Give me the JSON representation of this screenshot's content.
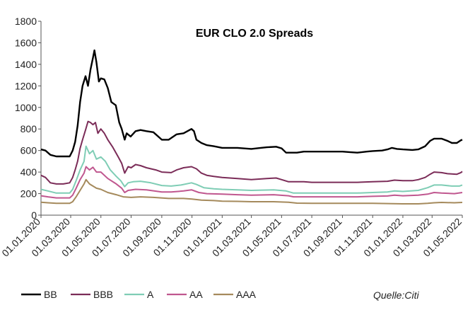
{
  "chart_data": {
    "type": "line",
    "title": "EUR CLO 2.0 Spreads",
    "source": "Quelle:Citi",
    "ylim": [
      0,
      1800
    ],
    "yticks": [
      0,
      200,
      400,
      600,
      800,
      1000,
      1200,
      1400,
      1600,
      1800
    ],
    "xlim": [
      "2020-01-01",
      "2022-05-01"
    ],
    "xticks": [
      "01.01.2020",
      "01.03.2020",
      "01.05.2020",
      "01.07.2020",
      "01.09.2020",
      "01.11.2020",
      "01.01.2021",
      "01.03.2021",
      "01.05.2021",
      "01.07.2021",
      "01.09.2021",
      "01.11.2021",
      "01.01.2022",
      "01.03.2022",
      "01.05.2022"
    ],
    "grid": false,
    "legend": "bottom",
    "series": [
      {
        "name": "BB",
        "color": "#000000",
        "points": [
          [
            "2020-01-01",
            610
          ],
          [
            "2020-01-10",
            600
          ],
          [
            "2020-01-20",
            560
          ],
          [
            "2020-02-01",
            545
          ],
          [
            "2020-02-10",
            545
          ],
          [
            "2020-02-20",
            545
          ],
          [
            "2020-02-28",
            545
          ],
          [
            "2020-03-05",
            600
          ],
          [
            "2020-03-10",
            680
          ],
          [
            "2020-03-15",
            830
          ],
          [
            "2020-03-20",
            1050
          ],
          [
            "2020-03-25",
            1200
          ],
          [
            "2020-03-31",
            1290
          ],
          [
            "2020-04-05",
            1200
          ],
          [
            "2020-04-10",
            1350
          ],
          [
            "2020-04-15",
            1460
          ],
          [
            "2020-04-18",
            1530
          ],
          [
            "2020-04-22",
            1420
          ],
          [
            "2020-04-27",
            1240
          ],
          [
            "2020-05-01",
            1270
          ],
          [
            "2020-05-08",
            1260
          ],
          [
            "2020-05-15",
            1180
          ],
          [
            "2020-05-22",
            1050
          ],
          [
            "2020-05-31",
            1020
          ],
          [
            "2020-06-07",
            860
          ],
          [
            "2020-06-12",
            800
          ],
          [
            "2020-06-18",
            700
          ],
          [
            "2020-06-22",
            760
          ],
          [
            "2020-06-30",
            730
          ],
          [
            "2020-07-10",
            780
          ],
          [
            "2020-07-20",
            790
          ],
          [
            "2020-08-01",
            780
          ],
          [
            "2020-08-15",
            770
          ],
          [
            "2020-09-01",
            700
          ],
          [
            "2020-09-15",
            700
          ],
          [
            "2020-10-01",
            750
          ],
          [
            "2020-10-15",
            760
          ],
          [
            "2020-10-31",
            800
          ],
          [
            "2020-11-05",
            780
          ],
          [
            "2020-11-10",
            700
          ],
          [
            "2020-11-20",
            670
          ],
          [
            "2020-12-01",
            650
          ],
          [
            "2020-12-15",
            640
          ],
          [
            "2021-01-01",
            625
          ],
          [
            "2021-02-01",
            625
          ],
          [
            "2021-03-01",
            615
          ],
          [
            "2021-03-20",
            625
          ],
          [
            "2021-04-01",
            630
          ],
          [
            "2021-04-20",
            635
          ],
          [
            "2021-05-01",
            620
          ],
          [
            "2021-05-10",
            580
          ],
          [
            "2021-06-01",
            580
          ],
          [
            "2021-06-15",
            590
          ],
          [
            "2021-07-01",
            590
          ],
          [
            "2021-08-01",
            590
          ],
          [
            "2021-09-01",
            590
          ],
          [
            "2021-09-15",
            585
          ],
          [
            "2021-10-01",
            580
          ],
          [
            "2021-10-20",
            590
          ],
          [
            "2021-11-01",
            595
          ],
          [
            "2021-11-20",
            600
          ],
          [
            "2021-12-01",
            610
          ],
          [
            "2021-12-10",
            625
          ],
          [
            "2021-12-20",
            615
          ],
          [
            "2022-01-01",
            610
          ],
          [
            "2022-01-20",
            605
          ],
          [
            "2022-02-01",
            610
          ],
          [
            "2022-02-15",
            640
          ],
          [
            "2022-02-25",
            690
          ],
          [
            "2022-03-05",
            710
          ],
          [
            "2022-03-20",
            710
          ],
          [
            "2022-04-01",
            690
          ],
          [
            "2022-04-10",
            670
          ],
          [
            "2022-04-20",
            670
          ],
          [
            "2022-04-28",
            695
          ],
          [
            "2022-05-01",
            700
          ]
        ]
      },
      {
        "name": "BBB",
        "color": "#7b2c58",
        "points": [
          [
            "2020-01-01",
            370
          ],
          [
            "2020-01-10",
            350
          ],
          [
            "2020-01-20",
            300
          ],
          [
            "2020-02-01",
            290
          ],
          [
            "2020-02-15",
            290
          ],
          [
            "2020-02-28",
            300
          ],
          [
            "2020-03-05",
            350
          ],
          [
            "2020-03-10",
            420
          ],
          [
            "2020-03-15",
            500
          ],
          [
            "2020-03-20",
            620
          ],
          [
            "2020-03-25",
            700
          ],
          [
            "2020-03-31",
            790
          ],
          [
            "2020-04-05",
            870
          ],
          [
            "2020-04-10",
            860
          ],
          [
            "2020-04-15",
            840
          ],
          [
            "2020-04-20",
            860
          ],
          [
            "2020-04-25",
            760
          ],
          [
            "2020-05-01",
            800
          ],
          [
            "2020-05-08",
            760
          ],
          [
            "2020-05-15",
            700
          ],
          [
            "2020-05-25",
            630
          ],
          [
            "2020-06-05",
            540
          ],
          [
            "2020-06-12",
            480
          ],
          [
            "2020-06-18",
            390
          ],
          [
            "2020-06-25",
            450
          ],
          [
            "2020-07-01",
            440
          ],
          [
            "2020-07-10",
            470
          ],
          [
            "2020-07-20",
            460
          ],
          [
            "2020-08-01",
            440
          ],
          [
            "2020-08-20",
            420
          ],
          [
            "2020-09-01",
            400
          ],
          [
            "2020-09-20",
            395
          ],
          [
            "2020-10-01",
            420
          ],
          [
            "2020-10-15",
            440
          ],
          [
            "2020-10-31",
            450
          ],
          [
            "2020-11-10",
            430
          ],
          [
            "2020-11-20",
            390
          ],
          [
            "2020-12-01",
            370
          ],
          [
            "2020-12-15",
            360
          ],
          [
            "2021-01-01",
            350
          ],
          [
            "2021-02-01",
            340
          ],
          [
            "2021-03-01",
            330
          ],
          [
            "2021-04-01",
            340
          ],
          [
            "2021-04-20",
            345
          ],
          [
            "2021-05-01",
            330
          ],
          [
            "2021-05-15",
            310
          ],
          [
            "2021-06-15",
            310
          ],
          [
            "2021-07-01",
            305
          ],
          [
            "2021-08-01",
            305
          ],
          [
            "2021-09-01",
            305
          ],
          [
            "2021-10-01",
            305
          ],
          [
            "2021-11-01",
            310
          ],
          [
            "2021-12-01",
            315
          ],
          [
            "2021-12-15",
            325
          ],
          [
            "2022-01-01",
            320
          ],
          [
            "2022-01-20",
            320
          ],
          [
            "2022-02-01",
            330
          ],
          [
            "2022-02-15",
            350
          ],
          [
            "2022-02-25",
            380
          ],
          [
            "2022-03-05",
            400
          ],
          [
            "2022-03-20",
            395
          ],
          [
            "2022-04-01",
            385
          ],
          [
            "2022-04-20",
            380
          ],
          [
            "2022-04-28",
            395
          ],
          [
            "2022-05-01",
            405
          ]
        ]
      },
      {
        "name": "A",
        "color": "#7fcdb5",
        "points": [
          [
            "2020-01-01",
            240
          ],
          [
            "2020-01-15",
            225
          ],
          [
            "2020-02-01",
            205
          ],
          [
            "2020-02-28",
            205
          ],
          [
            "2020-03-05",
            240
          ],
          [
            "2020-03-12",
            320
          ],
          [
            "2020-03-20",
            420
          ],
          [
            "2020-03-28",
            500
          ],
          [
            "2020-04-01",
            640
          ],
          [
            "2020-04-08",
            570
          ],
          [
            "2020-04-15",
            600
          ],
          [
            "2020-04-22",
            520
          ],
          [
            "2020-05-01",
            540
          ],
          [
            "2020-05-10",
            500
          ],
          [
            "2020-05-20",
            420
          ],
          [
            "2020-06-01",
            360
          ],
          [
            "2020-06-10",
            320
          ],
          [
            "2020-06-18",
            265
          ],
          [
            "2020-06-25",
            300
          ],
          [
            "2020-07-05",
            310
          ],
          [
            "2020-07-20",
            315
          ],
          [
            "2020-08-10",
            300
          ],
          [
            "2020-09-01",
            275
          ],
          [
            "2020-09-20",
            270
          ],
          [
            "2020-10-10",
            280
          ],
          [
            "2020-10-31",
            300
          ],
          [
            "2020-11-10",
            285
          ],
          [
            "2020-11-25",
            255
          ],
          [
            "2020-12-15",
            245
          ],
          [
            "2021-01-01",
            240
          ],
          [
            "2021-02-01",
            235
          ],
          [
            "2021-03-01",
            230
          ],
          [
            "2021-04-15",
            235
          ],
          [
            "2021-05-10",
            225
          ],
          [
            "2021-05-25",
            205
          ],
          [
            "2021-07-01",
            205
          ],
          [
            "2021-08-01",
            205
          ],
          [
            "2021-09-01",
            205
          ],
          [
            "2021-10-01",
            205
          ],
          [
            "2021-11-01",
            210
          ],
          [
            "2021-12-01",
            215
          ],
          [
            "2021-12-15",
            225
          ],
          [
            "2022-01-01",
            220
          ],
          [
            "2022-02-01",
            230
          ],
          [
            "2022-02-20",
            255
          ],
          [
            "2022-03-05",
            280
          ],
          [
            "2022-03-20",
            280
          ],
          [
            "2022-04-10",
            270
          ],
          [
            "2022-04-25",
            270
          ],
          [
            "2022-05-01",
            280
          ]
        ]
      },
      {
        "name": "AA",
        "color": "#c0578f",
        "points": [
          [
            "2020-01-01",
            180
          ],
          [
            "2020-01-15",
            170
          ],
          [
            "2020-02-01",
            160
          ],
          [
            "2020-02-28",
            160
          ],
          [
            "2020-03-05",
            185
          ],
          [
            "2020-03-12",
            250
          ],
          [
            "2020-03-20",
            330
          ],
          [
            "2020-03-28",
            390
          ],
          [
            "2020-04-01",
            450
          ],
          [
            "2020-04-08",
            420
          ],
          [
            "2020-04-15",
            445
          ],
          [
            "2020-04-22",
            400
          ],
          [
            "2020-05-01",
            400
          ],
          [
            "2020-05-15",
            340
          ],
          [
            "2020-06-01",
            290
          ],
          [
            "2020-06-12",
            250
          ],
          [
            "2020-06-18",
            210
          ],
          [
            "2020-06-25",
            230
          ],
          [
            "2020-07-10",
            240
          ],
          [
            "2020-08-01",
            235
          ],
          [
            "2020-09-01",
            215
          ],
          [
            "2020-09-20",
            215
          ],
          [
            "2020-10-15",
            225
          ],
          [
            "2020-10-31",
            235
          ],
          [
            "2020-11-15",
            210
          ],
          [
            "2020-12-01",
            200
          ],
          [
            "2021-01-01",
            195
          ],
          [
            "2021-02-01",
            190
          ],
          [
            "2021-03-01",
            185
          ],
          [
            "2021-04-15",
            190
          ],
          [
            "2021-05-15",
            180
          ],
          [
            "2021-05-25",
            170
          ],
          [
            "2021-07-01",
            170
          ],
          [
            "2021-08-01",
            170
          ],
          [
            "2021-09-01",
            170
          ],
          [
            "2021-10-01",
            170
          ],
          [
            "2021-11-01",
            175
          ],
          [
            "2021-12-01",
            178
          ],
          [
            "2021-12-15",
            185
          ],
          [
            "2022-01-01",
            180
          ],
          [
            "2022-02-01",
            185
          ],
          [
            "2022-02-20",
            195
          ],
          [
            "2022-03-05",
            210
          ],
          [
            "2022-03-20",
            205
          ],
          [
            "2022-04-15",
            200
          ],
          [
            "2022-05-01",
            210
          ]
        ]
      },
      {
        "name": "AAA",
        "color": "#a58a5c",
        "points": [
          [
            "2020-01-01",
            120
          ],
          [
            "2020-01-15",
            115
          ],
          [
            "2020-02-01",
            110
          ],
          [
            "2020-02-28",
            110
          ],
          [
            "2020-03-05",
            125
          ],
          [
            "2020-03-12",
            170
          ],
          [
            "2020-03-20",
            230
          ],
          [
            "2020-03-28",
            290
          ],
          [
            "2020-04-01",
            330
          ],
          [
            "2020-04-08",
            290
          ],
          [
            "2020-04-15",
            270
          ],
          [
            "2020-04-22",
            250
          ],
          [
            "2020-05-01",
            240
          ],
          [
            "2020-05-15",
            210
          ],
          [
            "2020-06-01",
            190
          ],
          [
            "2020-06-15",
            170
          ],
          [
            "2020-07-01",
            165
          ],
          [
            "2020-07-20",
            170
          ],
          [
            "2020-08-15",
            165
          ],
          [
            "2020-09-15",
            155
          ],
          [
            "2020-10-15",
            155
          ],
          [
            "2020-11-01",
            150
          ],
          [
            "2020-11-20",
            140
          ],
          [
            "2020-12-15",
            135
          ],
          [
            "2021-01-01",
            130
          ],
          [
            "2021-02-01",
            128
          ],
          [
            "2021-03-01",
            125
          ],
          [
            "2021-04-15",
            125
          ],
          [
            "2021-05-15",
            120
          ],
          [
            "2021-06-01",
            112
          ],
          [
            "2021-07-01",
            110
          ],
          [
            "2021-08-01",
            110
          ],
          [
            "2021-09-01",
            110
          ],
          [
            "2021-10-01",
            110
          ],
          [
            "2021-11-01",
            110
          ],
          [
            "2021-12-01",
            108
          ],
          [
            "2022-01-01",
            105
          ],
          [
            "2022-02-01",
            105
          ],
          [
            "2022-02-20",
            110
          ],
          [
            "2022-03-05",
            115
          ],
          [
            "2022-03-20",
            118
          ],
          [
            "2022-04-15",
            115
          ],
          [
            "2022-05-01",
            118
          ]
        ]
      }
    ]
  }
}
